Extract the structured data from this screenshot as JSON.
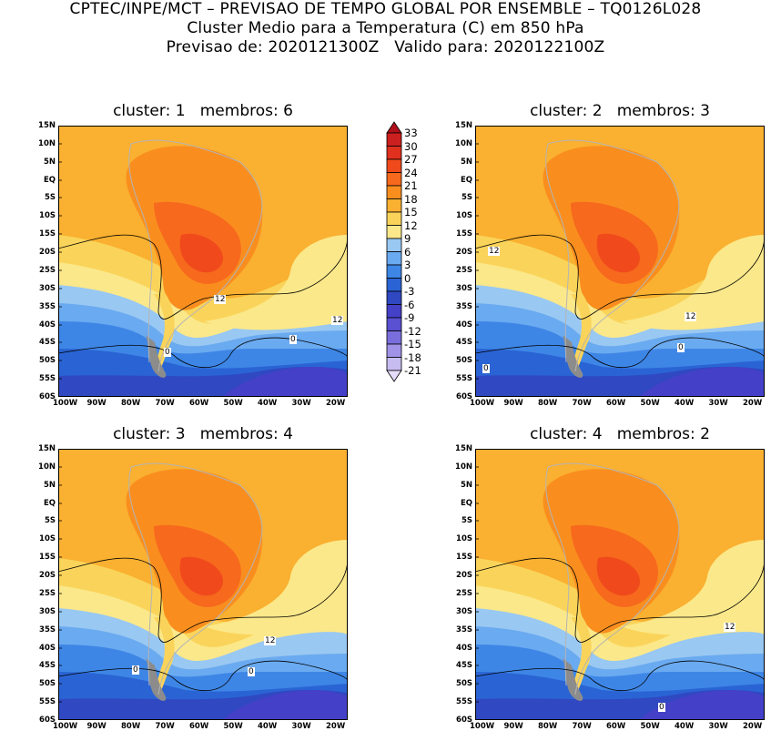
{
  "header": {
    "line1": "CPTEC/INPE/MCT – PREVISAO DE TEMPO GLOBAL POR ENSEMBLE – TQ0126L028",
    "line2": "Cluster Medio para a Temperatura (C) em 850 hPa",
    "line3": "Previsao de: 2020121300Z   Valido para: 2020122100Z"
  },
  "panels": [
    {
      "title": "cluster: 1   membros: 6",
      "contours": [
        "12",
        "12",
        "0",
        "0"
      ]
    },
    {
      "title": "cluster: 2   membros: 3",
      "contours": [
        "12",
        "12",
        "0",
        "0"
      ]
    },
    {
      "title": "cluster: 3   membros: 4",
      "contours": [
        "12",
        "0",
        "0"
      ]
    },
    {
      "title": "cluster: 4   membros: 2",
      "contours": [
        "12",
        "0"
      ]
    }
  ],
  "axes": {
    "lat_labels": [
      "15N",
      "10N",
      "5N",
      "EQ",
      "5S",
      "10S",
      "15S",
      "20S",
      "25S",
      "30S",
      "35S",
      "40S",
      "45S",
      "50S",
      "55S",
      "60S"
    ],
    "lon_labels": [
      "100W",
      "90W",
      "80W",
      "70W",
      "60W",
      "50W",
      "40W",
      "30W",
      "20W"
    ]
  },
  "colorbar": {
    "labels": [
      "33",
      "30",
      "27",
      "24",
      "21",
      "18",
      "15",
      "12",
      "9",
      "6",
      "3",
      "0",
      "-3",
      "-6",
      "-9",
      "-12",
      "-15",
      "-18",
      "-21"
    ],
    "colors": [
      "#b0101a",
      "#cc1f1f",
      "#e0301e",
      "#f04a1c",
      "#f7691d",
      "#f98e1f",
      "#fab030",
      "#fad45a",
      "#fbe88a",
      "#99c8f2",
      "#6aaaf0",
      "#3e86e6",
      "#2a64d4",
      "#3048c2",
      "#4440c8",
      "#5a50d2",
      "#7a6edc",
      "#a092e6",
      "#c6bcf0",
      "#e4dcf8"
    ]
  }
}
